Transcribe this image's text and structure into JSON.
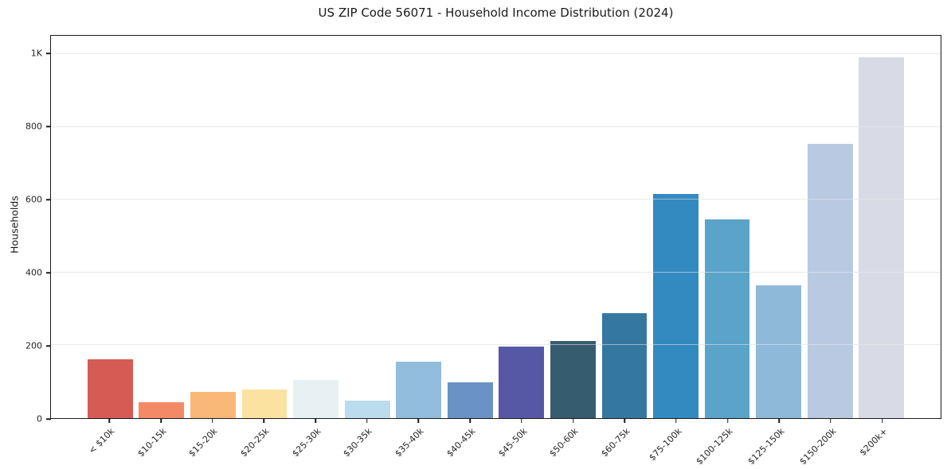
{
  "chart_data": {
    "type": "bar",
    "title": "US ZIP Code 56071 - Household Income Distribution (2024)",
    "ylabel": "Households",
    "xlabel": "",
    "categories": [
      "< $10k",
      "$10-15k",
      "$15-20k",
      "$20-25k",
      "$25-30k",
      "$30-35k",
      "$35-40k",
      "$40-45k",
      "$45-50k",
      "$50-60k",
      "$60-75k",
      "$75-100k",
      "$100-125k",
      "$125-150k",
      "$150-200k",
      "$200k+"
    ],
    "values": [
      162,
      43,
      71,
      79,
      105,
      49,
      155,
      99,
      196,
      212,
      289,
      616,
      545,
      364,
      754,
      991
    ],
    "bar_colors": [
      "#d65b55",
      "#f48a65",
      "#fab878",
      "#fce2a1",
      "#e7f1f3",
      "#badcec",
      "#92bddd",
      "#6b92c4",
      "#5658a6",
      "#365c70",
      "#35789f",
      "#338ac1",
      "#5aa3c9",
      "#8fb9d9",
      "#b9c9e2",
      "#d8dbe6"
    ],
    "ylim": [
      0,
      1050
    ],
    "y_ticks": [
      {
        "value": 0,
        "label": "0"
      },
      {
        "value": 200,
        "label": "200"
      },
      {
        "value": 400,
        "label": "400"
      },
      {
        "value": 600,
        "label": "600"
      },
      {
        "value": 800,
        "label": "800"
      },
      {
        "value": 1000,
        "label": "1K"
      }
    ],
    "grid": "horizontal",
    "legend": "none",
    "x_tick_rotation_deg": 45,
    "colors": {
      "spine": "#1a1a1a",
      "gridline": "#e9e9e9",
      "gridline_over_bars": "rgba(235,235,235,0.55)",
      "background": "#ffffff",
      "tick_label": "#262626",
      "title": "#1a1a1a"
    }
  }
}
